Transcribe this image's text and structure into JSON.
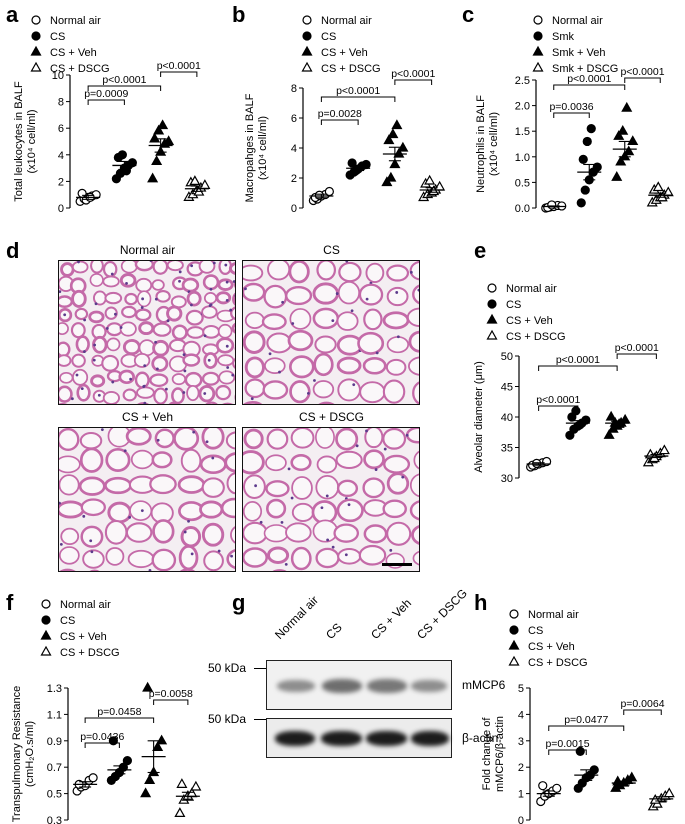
{
  "panels": {
    "a": {
      "label": "a",
      "legend": [
        "Normal air",
        "CS",
        "CS + Veh",
        "CS + DSCG"
      ],
      "ylabel_line1": "Total leukocytes in BALF",
      "ylabel_line2": "(x10⁴ cell/ml)",
      "ticks": [
        "0",
        "2",
        "4",
        "6",
        "8",
        "10"
      ],
      "pvalues": [
        "p=0.0009",
        "p<0.0001",
        "p<0.0001"
      ]
    },
    "b": {
      "label": "b",
      "legend": [
        "Normal air",
        "CS",
        "CS + Veh",
        "CS + DSCG"
      ],
      "ylabel_line1": "Macropahges in BALF",
      "ylabel_line2": "(x10⁴ cell/ml)",
      "ticks": [
        "0",
        "2",
        "4",
        "6",
        "8"
      ],
      "pvalues": [
        "p=0.0028",
        "p<0.0001",
        "p<0.0001"
      ]
    },
    "c": {
      "label": "c",
      "legend": [
        "Normal air",
        "Smk",
        "Smk + Veh",
        "Smk + DSCG"
      ],
      "ylabel_line1": "Neutrophils in BALF",
      "ylabel_line2": "(x10⁴ cell/ml)",
      "ticks": [
        "0.0",
        "0.5",
        "1.0",
        "1.5",
        "2.0",
        "2.5"
      ],
      "pvalues": [
        "p=0.0036",
        "p<0.0001",
        "p<0.0001"
      ]
    },
    "d": {
      "label": "d",
      "titles": [
        "Normal air",
        "CS",
        "CS + Veh",
        "CS + DSCG"
      ]
    },
    "e": {
      "label": "e",
      "legend": [
        "Normal air",
        "CS",
        "CS + Veh",
        "CS + DSCG"
      ],
      "ylabel_line1": "Alveolar diameter (μm)",
      "ticks": [
        "30",
        "35",
        "40",
        "45",
        "50"
      ],
      "pvalues": [
        "p<0.0001",
        "p<0.0001",
        "p<0.0001"
      ]
    },
    "f": {
      "label": "f",
      "legend": [
        "Normal air",
        "CS",
        "CS + Veh",
        "CS + DSCG"
      ],
      "ylabel_line1": "Transpulmonary Resistance",
      "ylabel_line2": "(cmH₂O.s/ml)",
      "ticks": [
        "0.3",
        "0.5",
        "0.7",
        "0.9",
        "1.1",
        "1.3"
      ],
      "pvalues": [
        "p=0.0436",
        "p=0.0458",
        "p=0.0058"
      ]
    },
    "g": {
      "label": "g",
      "lanes": [
        "Normal air",
        "CS",
        "CS + Veh",
        "CS + DSCG"
      ],
      "mw1": "50 kDa",
      "mw2": "50 kDa",
      "band1": "mMCP6",
      "band2": "β-actin"
    },
    "h": {
      "label": "h",
      "legend": [
        "Normal air",
        "CS",
        "CS + Veh",
        "CS + DSCG"
      ],
      "ylabel_line1": "Fold change of",
      "ylabel_line2": "mMCP6/β-actin",
      "ticks": [
        "0",
        "1",
        "2",
        "3",
        "4",
        "5"
      ],
      "pvalues": [
        "p=0.0015",
        "p=0.0477",
        "p=0.0064"
      ]
    }
  },
  "chart_data": [
    {
      "type": "scatter",
      "panel": "a",
      "ylim": [
        0,
        10
      ],
      "series": [
        {
          "name": "Normal air",
          "marker": "open-circle",
          "values": [
            0.5,
            0.7,
            0.8,
            0.9,
            1.0,
            1.1,
            0.6,
            0.8
          ],
          "mean": 0.8,
          "sem": 0.15
        },
        {
          "name": "CS",
          "marker": "filled-circle",
          "values": [
            2.2,
            2.6,
            3.0,
            3.2,
            3.4,
            3.8,
            4.0,
            2.8
          ],
          "mean": 3.2,
          "sem": 0.3
        },
        {
          "name": "CS + Veh",
          "marker": "filled-triangle",
          "values": [
            2.2,
            3.5,
            4.2,
            4.8,
            5.0,
            5.2,
            5.8,
            6.2
          ],
          "mean": 4.7,
          "sem": 0.5
        },
        {
          "name": "CS + DSCG",
          "marker": "open-triangle",
          "values": [
            0.8,
            1.0,
            1.3,
            1.5,
            1.7,
            1.9,
            2.0,
            1.2
          ],
          "mean": 1.45,
          "sem": 0.2
        }
      ]
    },
    {
      "type": "scatter",
      "panel": "b",
      "ylim": [
        0,
        8
      ],
      "series": [
        {
          "name": "Normal air",
          "marker": "open-circle",
          "values": [
            0.5,
            0.6,
            0.8,
            0.9,
            1.1,
            0.7,
            0.85
          ],
          "mean": 0.8,
          "sem": 0.12
        },
        {
          "name": "CS",
          "marker": "filled-circle",
          "values": [
            2.2,
            2.4,
            2.6,
            2.8,
            2.9,
            3.0,
            2.5
          ],
          "mean": 2.65,
          "sem": 0.15
        },
        {
          "name": "CS + Veh",
          "marker": "filled-triangle",
          "values": [
            1.7,
            2.0,
            2.9,
            3.6,
            4.0,
            4.5,
            4.9,
            5.5
          ],
          "mean": 3.6,
          "sem": 0.45
        },
        {
          "name": "CS + DSCG",
          "marker": "open-triangle",
          "values": [
            0.7,
            0.9,
            1.0,
            1.2,
            1.4,
            1.6,
            1.8,
            1.1
          ],
          "mean": 1.2,
          "sem": 0.15
        }
      ]
    },
    {
      "type": "scatter",
      "panel": "c",
      "ylim": [
        0,
        2.5
      ],
      "series": [
        {
          "name": "Normal air",
          "marker": "open-circle",
          "values": [
            0.0,
            0.02,
            0.03,
            0.05,
            0.04,
            0.01,
            0.06
          ],
          "mean": 0.03,
          "sem": 0.01
        },
        {
          "name": "Smk",
          "marker": "filled-circle",
          "values": [
            0.1,
            0.35,
            0.55,
            0.7,
            0.8,
            0.95,
            1.3,
            1.55
          ],
          "mean": 0.7,
          "sem": 0.15
        },
        {
          "name": "Smk + Veh",
          "marker": "filled-triangle",
          "values": [
            0.6,
            0.9,
            1.0,
            1.1,
            1.3,
            1.4,
            1.5,
            1.95
          ],
          "mean": 1.15,
          "sem": 0.15
        },
        {
          "name": "Smk + DSCG",
          "marker": "open-triangle",
          "values": [
            0.1,
            0.15,
            0.2,
            0.25,
            0.3,
            0.35,
            0.4,
            0.2
          ],
          "mean": 0.25,
          "sem": 0.04
        }
      ]
    },
    {
      "type": "scatter",
      "panel": "e",
      "ylim": [
        30,
        50
      ],
      "series": [
        {
          "name": "Normal air",
          "marker": "open-circle",
          "values": [
            31.8,
            32.0,
            32.3,
            32.5,
            32.7,
            32.1,
            32.4
          ],
          "mean": 32.3,
          "sem": 0.2
        },
        {
          "name": "CS",
          "marker": "filled-circle",
          "values": [
            37.0,
            38.0,
            38.5,
            39.0,
            39.5,
            40.0,
            41.0,
            38.7
          ],
          "mean": 39.0,
          "sem": 0.4
        },
        {
          "name": "CS + Veh",
          "marker": "filled-triangle",
          "values": [
            37.0,
            38.0,
            38.5,
            39.0,
            39.5,
            40.0,
            39.0,
            38.8
          ],
          "mean": 39.0,
          "sem": 0.3
        },
        {
          "name": "CS + DSCG",
          "marker": "open-triangle",
          "values": [
            32.5,
            33.0,
            33.5,
            34.0,
            34.5,
            33.8,
            33.2
          ],
          "mean": 33.6,
          "sem": 0.25
        }
      ]
    },
    {
      "type": "scatter",
      "panel": "f",
      "ylim": [
        0.3,
        1.3
      ],
      "series": [
        {
          "name": "Normal air",
          "marker": "open-circle",
          "values": [
            0.52,
            0.55,
            0.56,
            0.6,
            0.62,
            0.57
          ],
          "mean": 0.57,
          "sem": 0.02
        },
        {
          "name": "CS",
          "marker": "filled-circle",
          "values": [
            0.6,
            0.63,
            0.66,
            0.7,
            0.75,
            0.9
          ],
          "mean": 0.68,
          "sem": 0.03
        },
        {
          "name": "CS + Veh",
          "marker": "filled-triangle",
          "values": [
            0.5,
            0.6,
            0.66,
            0.85,
            0.9,
            1.3
          ],
          "mean": 0.78,
          "sem": 0.12
        },
        {
          "name": "CS + DSCG",
          "marker": "open-triangle",
          "values": [
            0.35,
            0.45,
            0.48,
            0.5,
            0.55,
            0.57
          ],
          "mean": 0.48,
          "sem": 0.03
        }
      ]
    },
    {
      "type": "scatter",
      "panel": "h",
      "ylim": [
        0,
        5
      ],
      "series": [
        {
          "name": "Normal air",
          "marker": "open-circle",
          "values": [
            0.7,
            0.9,
            1.0,
            1.1,
            1.2,
            1.3
          ],
          "mean": 1.0,
          "sem": 0.1
        },
        {
          "name": "CS",
          "marker": "filled-circle",
          "values": [
            1.2,
            1.4,
            1.6,
            1.7,
            1.9,
            2.6
          ],
          "mean": 1.7,
          "sem": 0.2
        },
        {
          "name": "CS + Veh",
          "marker": "filled-triangle",
          "values": [
            1.2,
            1.3,
            1.4,
            1.5,
            1.6,
            1.45
          ],
          "mean": 1.4,
          "sem": 0.07
        },
        {
          "name": "CS + DSCG",
          "marker": "open-triangle",
          "values": [
            0.5,
            0.6,
            0.8,
            0.9,
            1.0,
            0.75
          ],
          "mean": 0.8,
          "sem": 0.08
        }
      ]
    }
  ]
}
